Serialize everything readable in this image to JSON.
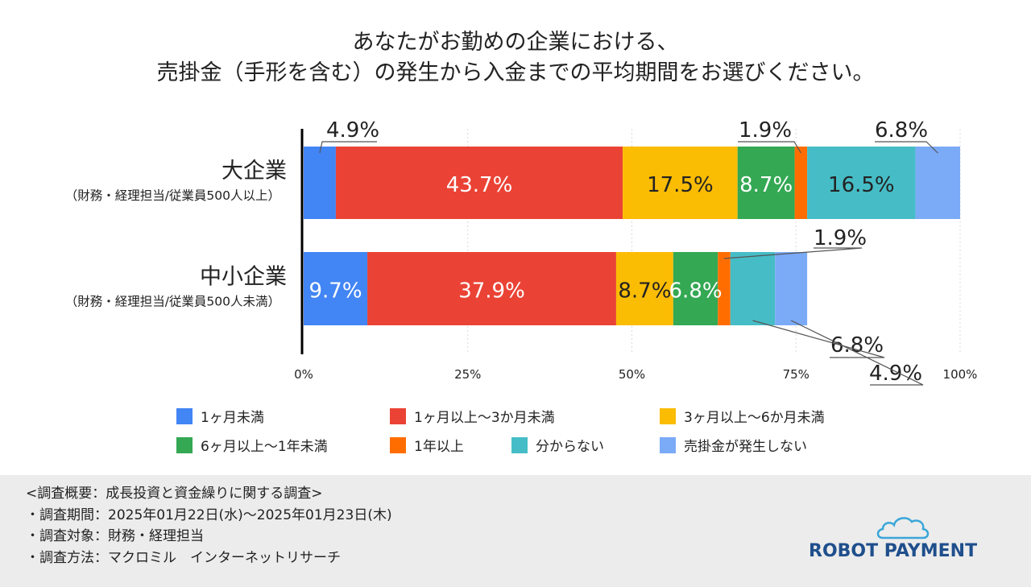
{
  "title": {
    "line1": "あなたがお勤めの企業における、",
    "line2": "売掛金（手形を含む）の発生から入金までの平均期間をお選びください。"
  },
  "chart_data": {
    "type": "bar",
    "orientation": "horizontal-stacked-100",
    "categories": [
      {
        "name": "大企業",
        "sub": "（財務・経理担当/従業員500人以上）"
      },
      {
        "name": "中小企業",
        "sub": "（財務・経理担当/従業員500人未満）"
      }
    ],
    "series": [
      {
        "name": "1ヶ月未満",
        "color": "#4285f4",
        "values": [
          4.9,
          9.7
        ],
        "labels": [
          "4.9%",
          "9.7%"
        ]
      },
      {
        "name": "1ヶ月以上～3か月未満",
        "color": "#ea4335",
        "values": [
          43.7,
          37.9
        ],
        "labels": [
          "43.7%",
          "37.9%"
        ]
      },
      {
        "name": "3ヶ月以上～6か月未満",
        "color": "#fbbc04",
        "values": [
          17.5,
          8.7
        ],
        "labels": [
          "17.5%",
          "8.7%"
        ]
      },
      {
        "name": "6ヶ月以上～1年未満",
        "color": "#34a853",
        "values": [
          8.7,
          6.8
        ],
        "labels": [
          "8.7%",
          "6.8%"
        ]
      },
      {
        "name": "1年以上",
        "color": "#ff6d01",
        "values": [
          1.9,
          1.9
        ],
        "labels": [
          "1.9%",
          "1.9%"
        ]
      },
      {
        "name": "分からない",
        "color": "#46bdc6",
        "values": [
          16.5,
          6.8
        ],
        "labels": [
          "16.5%",
          "6.8%"
        ]
      },
      {
        "name": "売掛金が発生しない",
        "color": "#7baaf7",
        "values": [
          6.8,
          4.9
        ],
        "labels": [
          "6.8%",
          "4.9%"
        ]
      }
    ],
    "xlim": [
      0,
      100
    ],
    "xticks": [
      "0%",
      "25%",
      "50%",
      "75%",
      "100%"
    ],
    "grid": true,
    "legend_position": "bottom"
  },
  "footer": {
    "heading": "<調査概要：成長投資と資金繰りに関する調査>",
    "period": "・調査期間：2025年01月22日(水)～2025年01月23日(木)",
    "target": "・調査対象：財務・経理担当",
    "method": "・調査方法：マクロミル　インターネットリサーチ"
  },
  "logo": {
    "text": "ROBOT PAYMENT",
    "color": "#1f4f8c"
  }
}
